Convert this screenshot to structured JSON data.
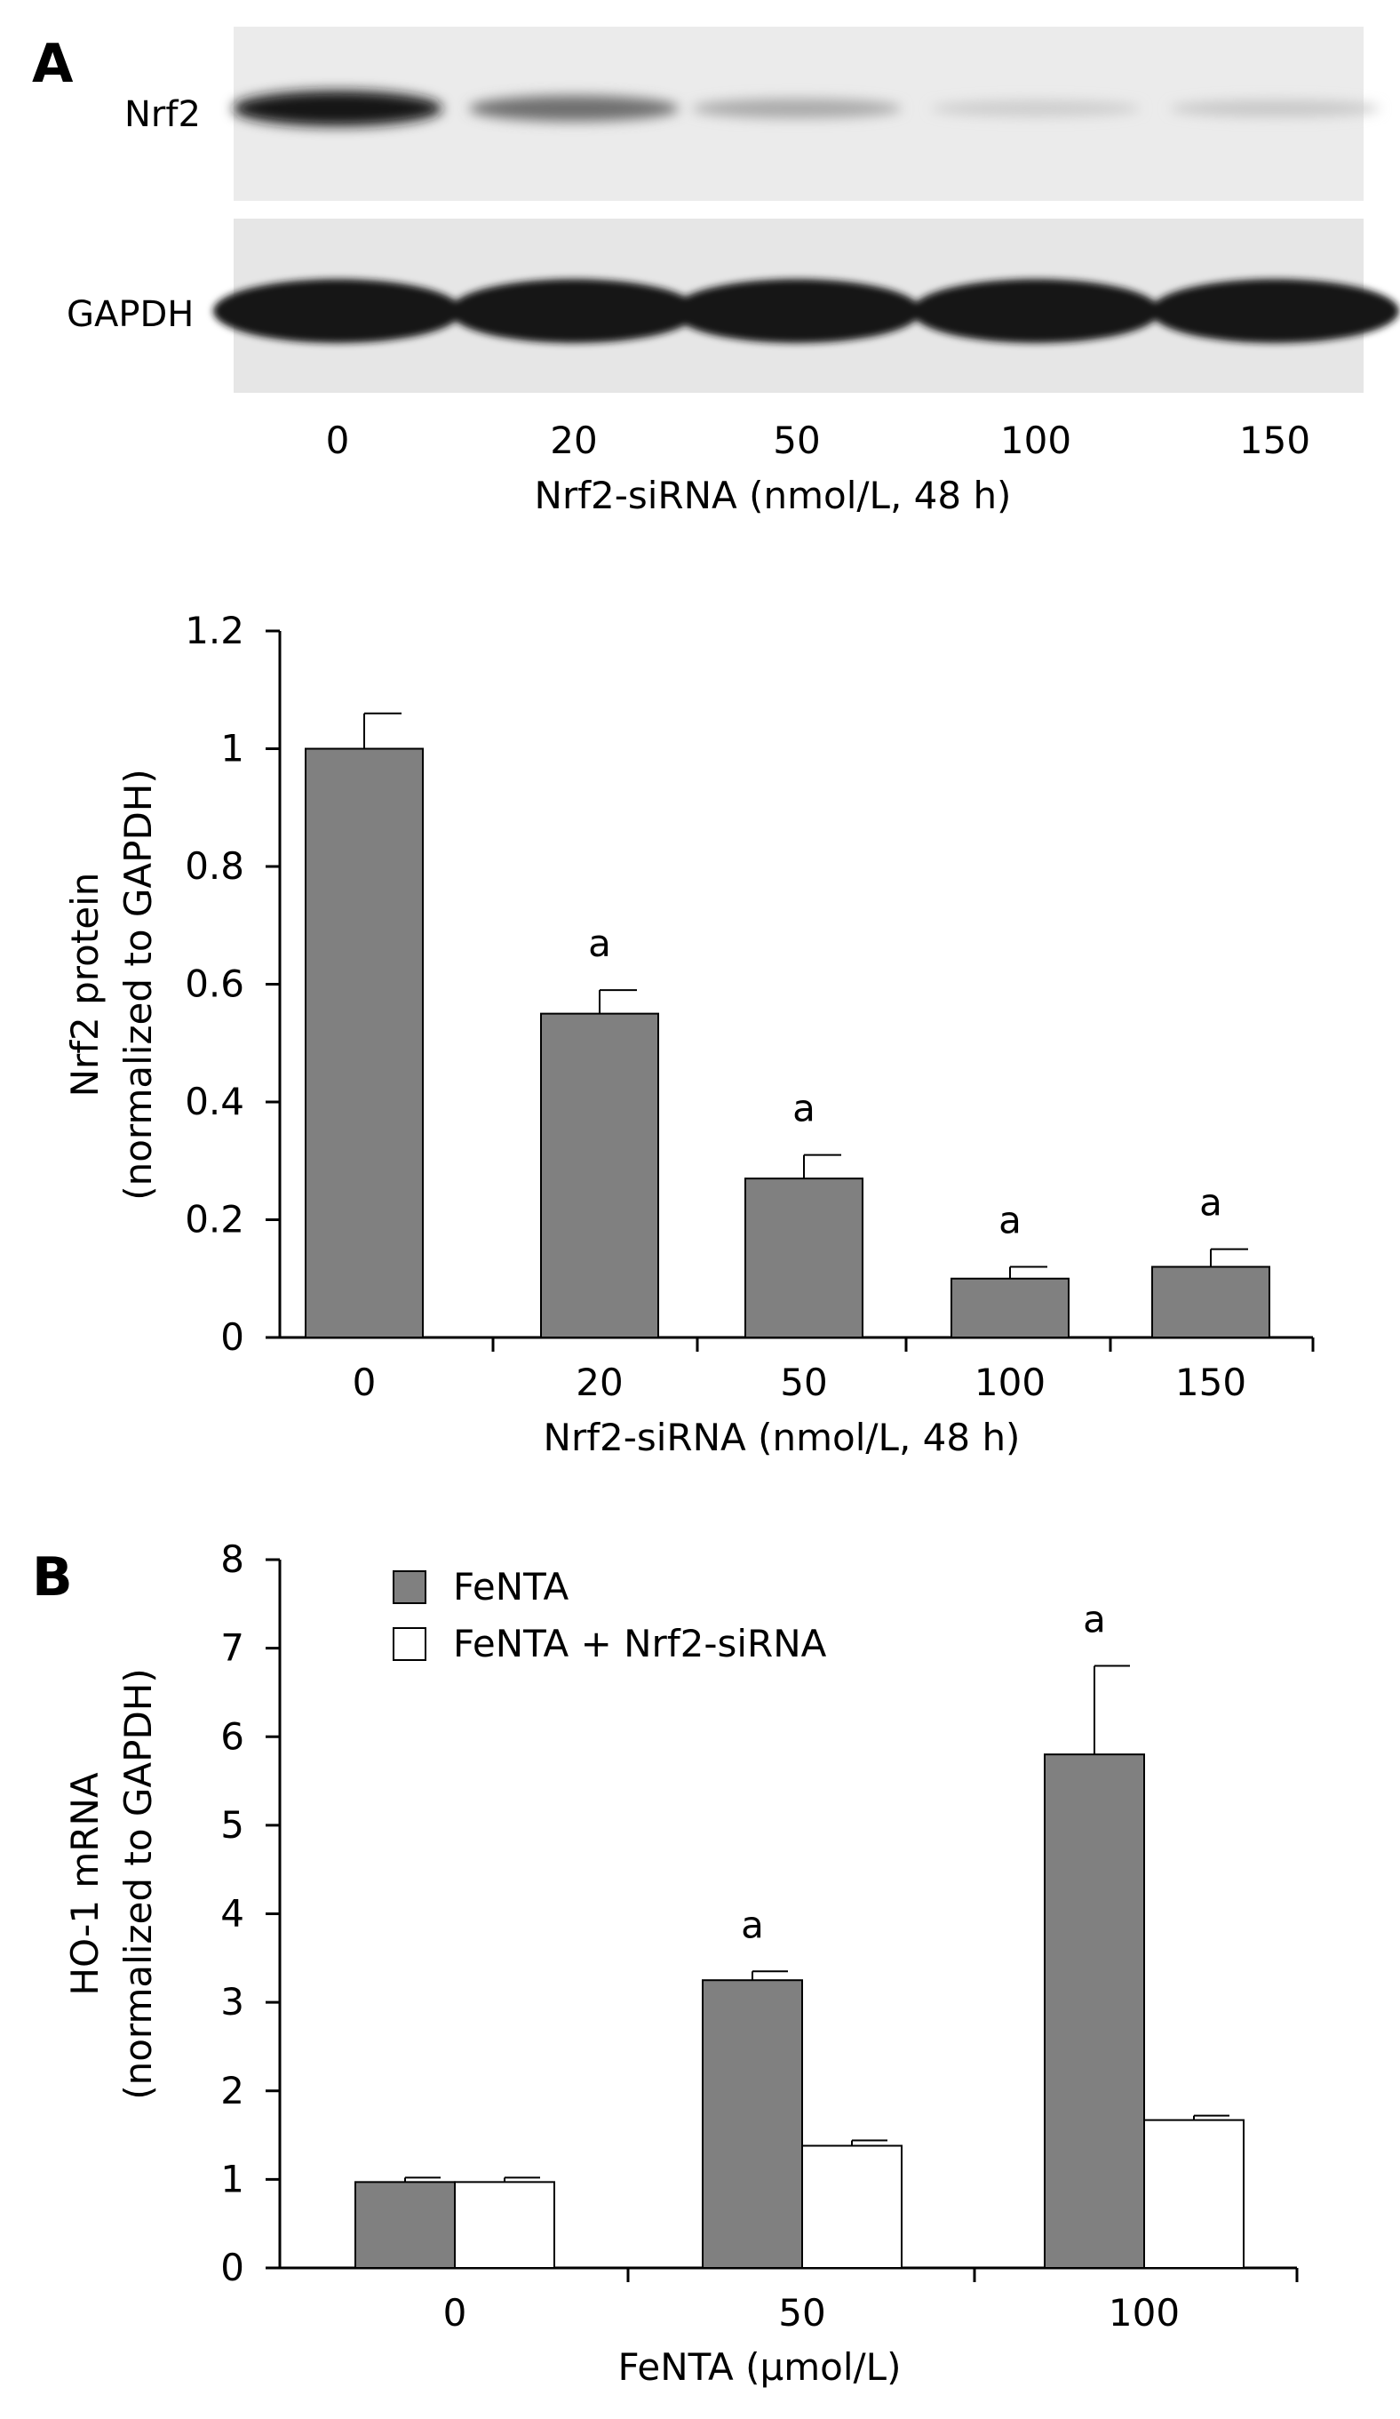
{
  "panel_a_label": "A",
  "panel_b_label": "B",
  "blot": {
    "row_labels": [
      "Nrf2",
      "GAPDH"
    ],
    "lane_labels": [
      "0",
      "20",
      "50",
      "100",
      "150"
    ],
    "xlabel": "Nrf2-siRNA (nmol/L, 48 h)",
    "nrf2_band_intensity": [
      1.0,
      0.55,
      0.27,
      0.1,
      0.12
    ],
    "gapdh_band_intensity": [
      1,
      1,
      1,
      1,
      1
    ]
  },
  "chart_data": [
    {
      "type": "bar",
      "title": "",
      "categories": [
        "0",
        "20",
        "50",
        "100",
        "150"
      ],
      "series": [
        {
          "values": [
            1.0,
            0.55,
            0.27,
            0.1,
            0.12
          ],
          "errors": [
            0.06,
            0.04,
            0.04,
            0.02,
            0.03
          ],
          "color": "#808080"
        }
      ],
      "annotations": [
        "",
        "a",
        "a",
        "a",
        "a"
      ],
      "xlabel": "Nrf2-siRNA (nmol/L, 48 h)",
      "ylabel": "Nrf2 protein",
      "ylabel2": "(normalized to GAPDH)",
      "ylim": [
        0,
        1.2
      ],
      "yticks": [
        "0",
        "0.2",
        "0.4",
        "0.6",
        "0.8",
        "1",
        "1.2"
      ],
      "grid": false
    },
    {
      "type": "bar",
      "title": "",
      "categories": [
        "0",
        "50",
        "100"
      ],
      "series": [
        {
          "name": "FeNTA",
          "values": [
            0.97,
            3.25,
            5.8
          ],
          "errors": [
            0.05,
            0.1,
            1.0
          ],
          "color": "#808080"
        },
        {
          "name": "FeNTA + Nrf2-siRNA",
          "values": [
            0.97,
            1.38,
            1.67
          ],
          "errors": [
            0.05,
            0.06,
            0.05
          ],
          "color": "#ffffff"
        }
      ],
      "annotations": [
        "",
        "a",
        "a"
      ],
      "xlabel": "FeNTA (μmol/L)",
      "ylabel": "HO-1 mRNA",
      "ylabel2": "(normalized to GAPDH)",
      "ylim": [
        0,
        8
      ],
      "yticks": [
        "0",
        "1",
        "2",
        "3",
        "4",
        "5",
        "6",
        "7",
        "8"
      ],
      "legend_position": "top-left",
      "grid": false
    }
  ]
}
